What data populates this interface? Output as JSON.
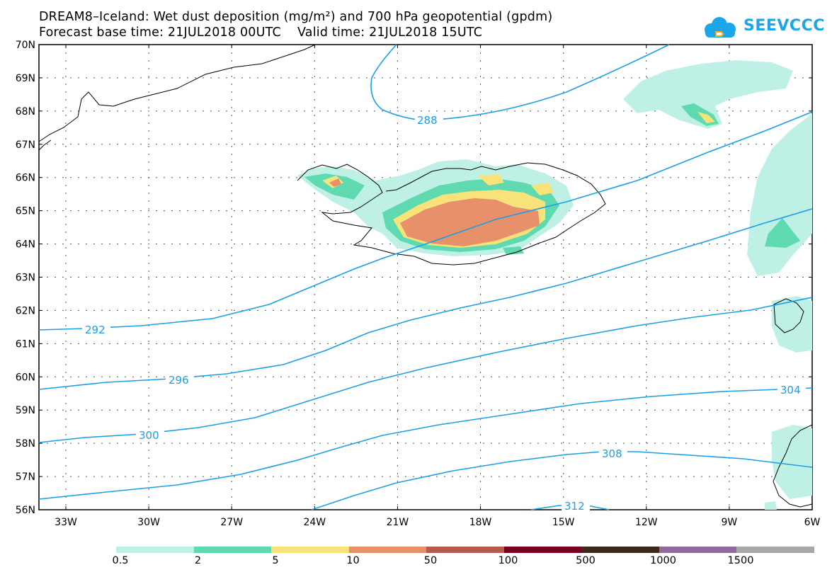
{
  "title": {
    "line1": "DREAM8–Iceland: Wet dust deposition (mg/m²) and 700 hPa geopotential (gpdm)",
    "line2": "Forecast base time: 21JUL2018 00UTC    Valid time: 21JUL2018 15UTC"
  },
  "logo": {
    "text": "SEEVCCC",
    "color": "#1aa6e8"
  },
  "axes": {
    "lat_labels": [
      "70N",
      "69N",
      "68N",
      "67N",
      "66N",
      "65N",
      "64N",
      "63N",
      "62N",
      "61N",
      "60N",
      "59N",
      "58N",
      "57N",
      "56N"
    ],
    "lon_labels": [
      "33W",
      "30W",
      "27W",
      "24W",
      "21W",
      "18W",
      "15W",
      "12W",
      "9W",
      "6W"
    ]
  },
  "contours": {
    "color": "#1aa0e6",
    "labels": [
      "288",
      "292",
      "296",
      "300",
      "304",
      "308",
      "312"
    ]
  },
  "legend": {
    "colors": [
      "#bff0e6",
      "#5ed9b0",
      "#f7e37a",
      "#e8906a",
      "#b45a4e",
      "#7a0020",
      "#3a2a1a",
      "#8f6a9e",
      "#a8a8a8"
    ],
    "labels": [
      "0.5",
      "2",
      "5",
      "10",
      "50",
      "100",
      "500",
      "1000",
      "1500"
    ]
  }
}
